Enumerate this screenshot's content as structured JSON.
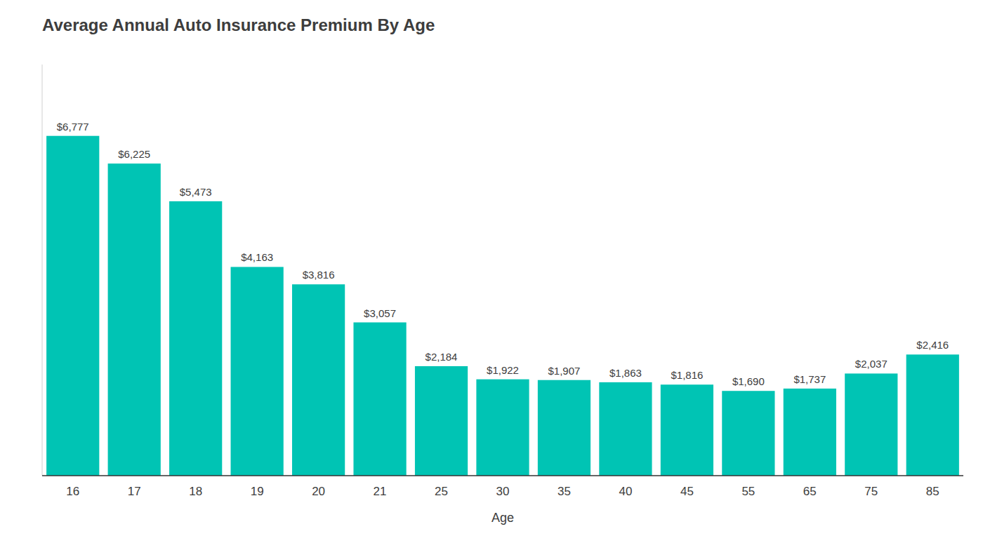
{
  "chart_data": {
    "type": "bar",
    "title": "Average Annual Auto Insurance Premium By Age",
    "xlabel": "Age",
    "categories": [
      "16",
      "17",
      "18",
      "19",
      "20",
      "21",
      "25",
      "30",
      "35",
      "40",
      "45",
      "55",
      "65",
      "75",
      "85"
    ],
    "values": [
      6777,
      6225,
      5473,
      4163,
      3816,
      3057,
      2184,
      1922,
      1907,
      1863,
      1816,
      1690,
      1737,
      2037,
      2416
    ],
    "value_labels": [
      "$6,777",
      "$6,225",
      "$5,473",
      "$4,163",
      "$3,816",
      "$3,057",
      "$2,184",
      "$1,922",
      "$1,907",
      "$1,863",
      "$1,816",
      "$1,690",
      "$1,737",
      "$2,037",
      "$2,416"
    ],
    "color": "#00C4B4",
    "ylim": [
      0,
      8200
    ],
    "data_labels": true,
    "tick_labels": "x",
    "grid": false
  }
}
